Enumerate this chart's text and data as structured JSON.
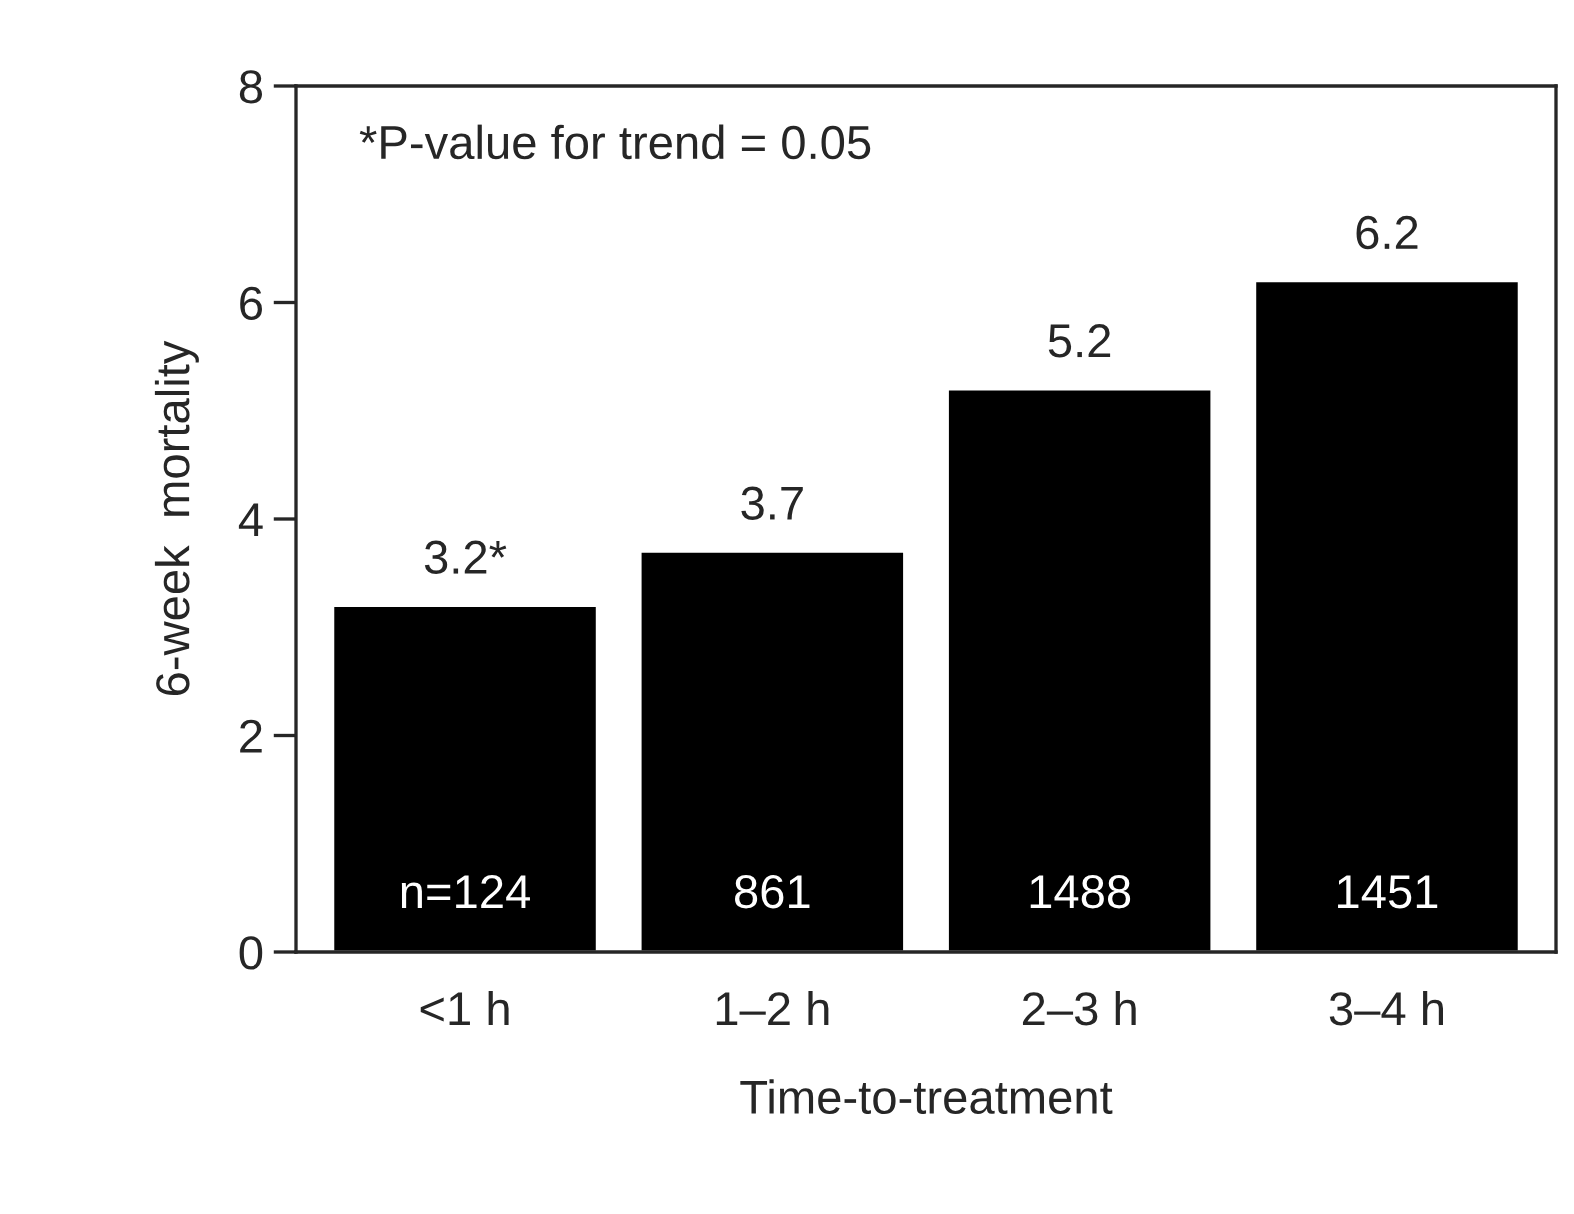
{
  "chart_data": {
    "type": "bar",
    "categories": [
      "<1 h",
      "1–2 h",
      "2–3 h",
      "3–4 h"
    ],
    "values": [
      3.2,
      3.7,
      5.2,
      6.2
    ],
    "value_labels": [
      "3.2*",
      "3.7",
      "5.2",
      "6.2"
    ],
    "color": "#000000",
    "xlabel": "Time-to-treatment",
    "ylabel": "6-week  mortality",
    "ylim": [
      0,
      8
    ],
    "yticks": [
      0,
      2,
      4,
      6,
      8
    ],
    "annotations": [
      "*P-value for trend = 0.05",
      "n=124",
      "861",
      "1488",
      "1451"
    ]
  }
}
